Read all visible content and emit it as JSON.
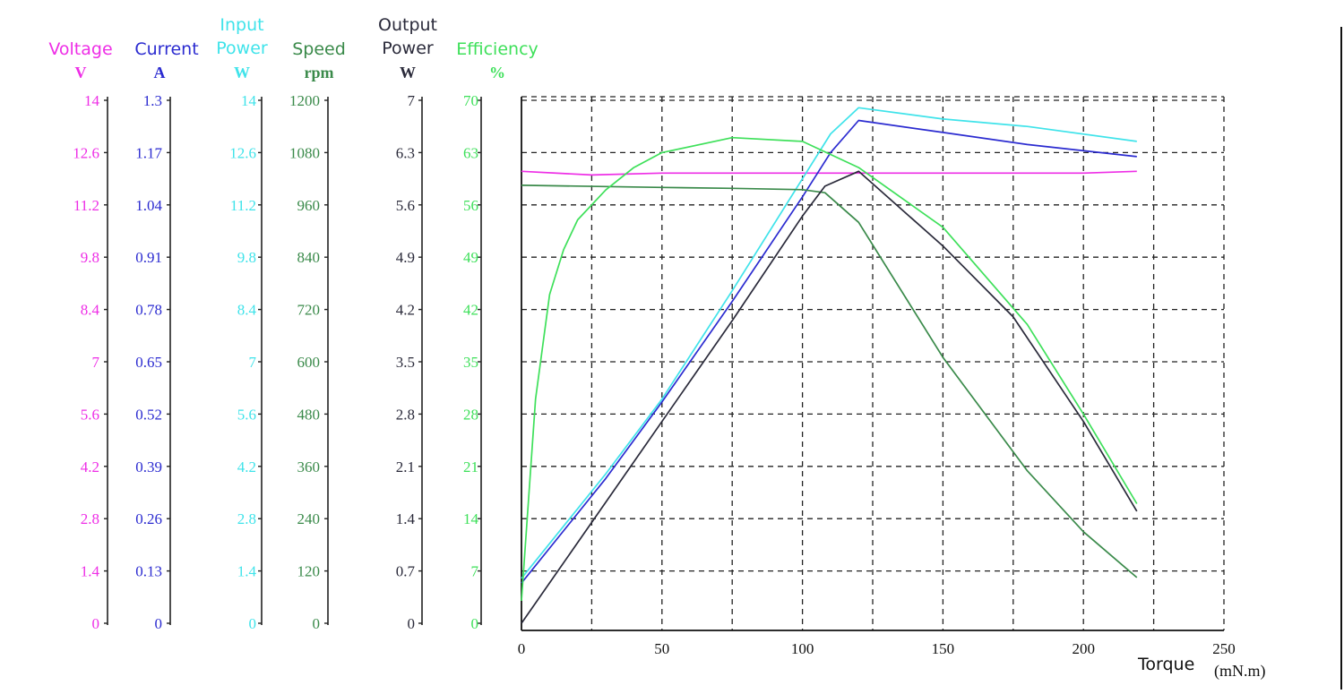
{
  "chart_data": {
    "type": "line",
    "grid": true,
    "x_axis": {
      "label": "Torque",
      "unit": "(mN.m)",
      "range": [
        0,
        250
      ],
      "ticks": [
        "0",
        "50",
        "100",
        "150",
        "200",
        "250"
      ]
    },
    "y_axes": [
      {
        "key": "voltage",
        "title": [
          "Voltage"
        ],
        "unit": "V",
        "color": "#ee2ee6",
        "range": [
          0,
          14
        ],
        "ticks": [
          "0",
          "1.4",
          "2.8",
          "4.2",
          "5.6",
          "7",
          "8.4",
          "9.8",
          "11.2",
          "12.6",
          "14"
        ]
      },
      {
        "key": "current",
        "title": [
          "Current"
        ],
        "unit": "A",
        "color": "#2b2bd0",
        "range": [
          0,
          1.3
        ],
        "ticks": [
          "0",
          "0.13",
          "0.26",
          "0.39",
          "0.52",
          "0.65",
          "0.78",
          "0.91",
          "1.04",
          "1.17",
          "1.3"
        ]
      },
      {
        "key": "input_power",
        "title": [
          "Input",
          "Power"
        ],
        "unit": "W",
        "color": "#3fe3ea",
        "range": [
          0,
          14
        ],
        "ticks": [
          "0",
          "1.4",
          "2.8",
          "4.2",
          "5.6",
          "7",
          "8.4",
          "9.8",
          "11.2",
          "12.6",
          "14"
        ]
      },
      {
        "key": "speed",
        "title": [
          "Speed"
        ],
        "unit": "rpm",
        "color": "#3a8a4a",
        "range": [
          0,
          1200
        ],
        "ticks": [
          "0",
          "120",
          "240",
          "360",
          "480",
          "600",
          "720",
          "840",
          "960",
          "1080",
          "1200"
        ]
      },
      {
        "key": "output_power",
        "title": [
          "Output",
          "Power"
        ],
        "unit": "W",
        "color": "#2a2a3a",
        "range": [
          0,
          7
        ],
        "ticks": [
          "0",
          "0.7",
          "1.4",
          "2.1",
          "2.8",
          "3.5",
          "4.2",
          "4.9",
          "5.6",
          "6.3",
          "7"
        ]
      },
      {
        "key": "efficiency",
        "title": [
          "Efficiency"
        ],
        "unit": "%",
        "color": "#3ee05a",
        "range": [
          0,
          70
        ],
        "ticks": [
          "0",
          "7",
          "14",
          "21",
          "28",
          "35",
          "42",
          "49",
          "56",
          "63",
          "70"
        ]
      }
    ],
    "series": [
      {
        "axis": "voltage",
        "color": "#ee2ee6",
        "x": [
          0,
          25,
          50,
          100,
          150,
          200,
          219
        ],
        "y": [
          12.1,
          12.0,
          12.05,
          12.05,
          12.05,
          12.05,
          12.1
        ]
      },
      {
        "axis": "current",
        "color": "#2b2bd0",
        "x": [
          0,
          30,
          50,
          75,
          100,
          110,
          120,
          150,
          180,
          219
        ],
        "y": [
          0.1,
          0.36,
          0.55,
          0.8,
          1.06,
          1.17,
          1.25,
          1.22,
          1.19,
          1.16
        ]
      },
      {
        "axis": "input_power",
        "color": "#3fe3ea",
        "x": [
          0,
          30,
          50,
          75,
          100,
          110,
          120,
          150,
          180,
          219
        ],
        "y": [
          1.2,
          4.0,
          6.0,
          8.9,
          11.9,
          13.1,
          13.8,
          13.5,
          13.3,
          12.9
        ]
      },
      {
        "axis": "speed",
        "color": "#3a8a4a",
        "x": [
          0,
          50,
          75,
          100,
          108,
          120,
          150,
          180,
          200,
          219
        ],
        "y": [
          1005,
          1000,
          998,
          995,
          988,
          920,
          610,
          350,
          210,
          105
        ]
      },
      {
        "axis": "output_power",
        "color": "#2a2a3a",
        "x": [
          0,
          25,
          50,
          75,
          100,
          108,
          120,
          150,
          175,
          200,
          219
        ],
        "y": [
          0,
          1.35,
          2.7,
          4.05,
          5.45,
          5.85,
          6.05,
          5.05,
          4.1,
          2.7,
          1.5
        ]
      },
      {
        "axis": "efficiency",
        "color": "#3ee05a",
        "x": [
          0,
          5,
          10,
          15,
          20,
          30,
          40,
          50,
          75,
          100,
          120,
          150,
          180,
          200,
          219
        ],
        "y": [
          3,
          30,
          44,
          50,
          54,
          58,
          61,
          63,
          65,
          64.5,
          61,
          53,
          40,
          28,
          16
        ]
      }
    ]
  }
}
